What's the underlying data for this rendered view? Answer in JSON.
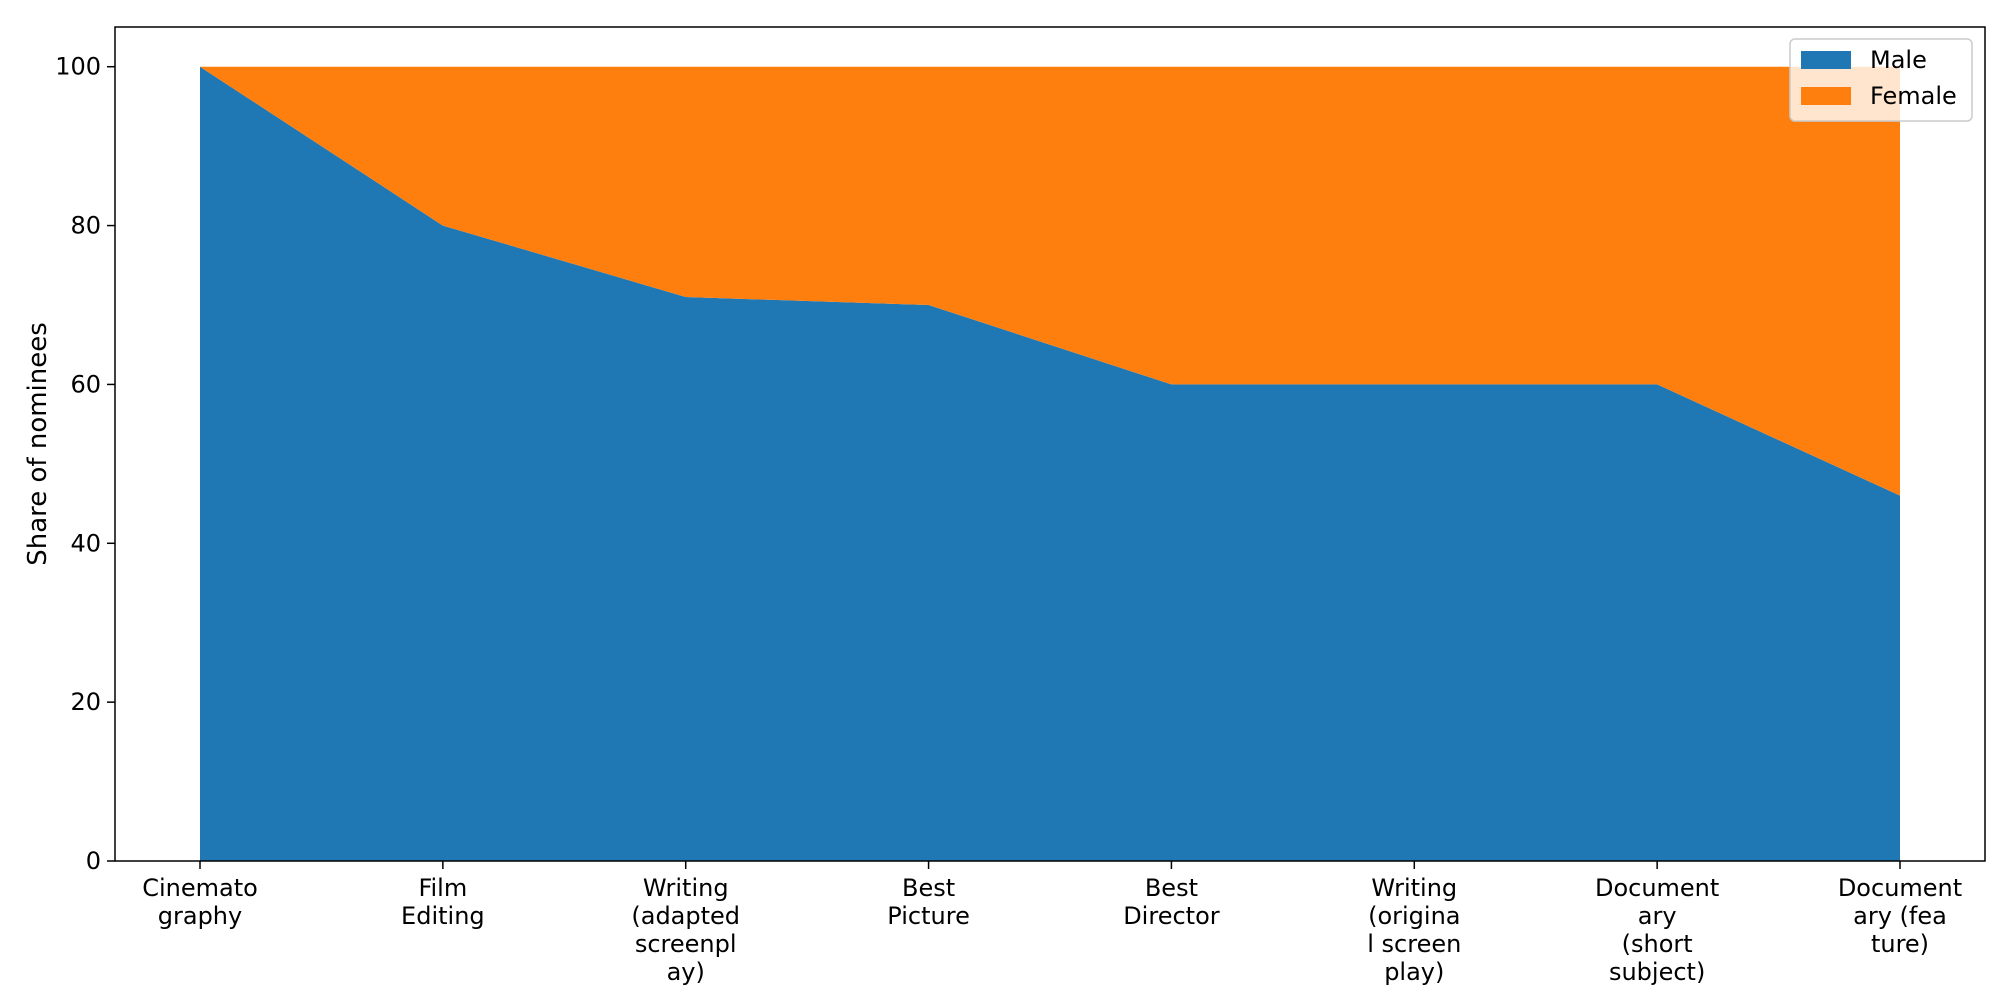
{
  "chart_data": {
    "type": "area",
    "stacked": true,
    "categories": [
      [
        "Cinemato",
        "graphy"
      ],
      [
        "Film",
        "Editing"
      ],
      [
        "Writing",
        "(adapted",
        "screenpl",
        "ay)"
      ],
      [
        "Best",
        "Picture"
      ],
      [
        "Best",
        "Director"
      ],
      [
        "Writing",
        "(origina",
        "l screen",
        "play)"
      ],
      [
        "Document",
        "ary",
        "(short",
        "subject)"
      ],
      [
        "Document",
        "ary (fea",
        "ture)"
      ]
    ],
    "series": [
      {
        "name": "Male",
        "color": "#1f77b4",
        "values": [
          100,
          80,
          71,
          70,
          60,
          60,
          60,
          46
        ]
      },
      {
        "name": "Female",
        "color": "#ff7f0e",
        "values": [
          0,
          20,
          29,
          30,
          40,
          40,
          40,
          54
        ]
      }
    ],
    "ylabel": "Share of nominees",
    "xlabel": "",
    "ylim": [
      0,
      105
    ],
    "yticks": [
      0,
      20,
      40,
      60,
      80,
      100
    ],
    "legend_position": "top-right",
    "grid": false
  }
}
